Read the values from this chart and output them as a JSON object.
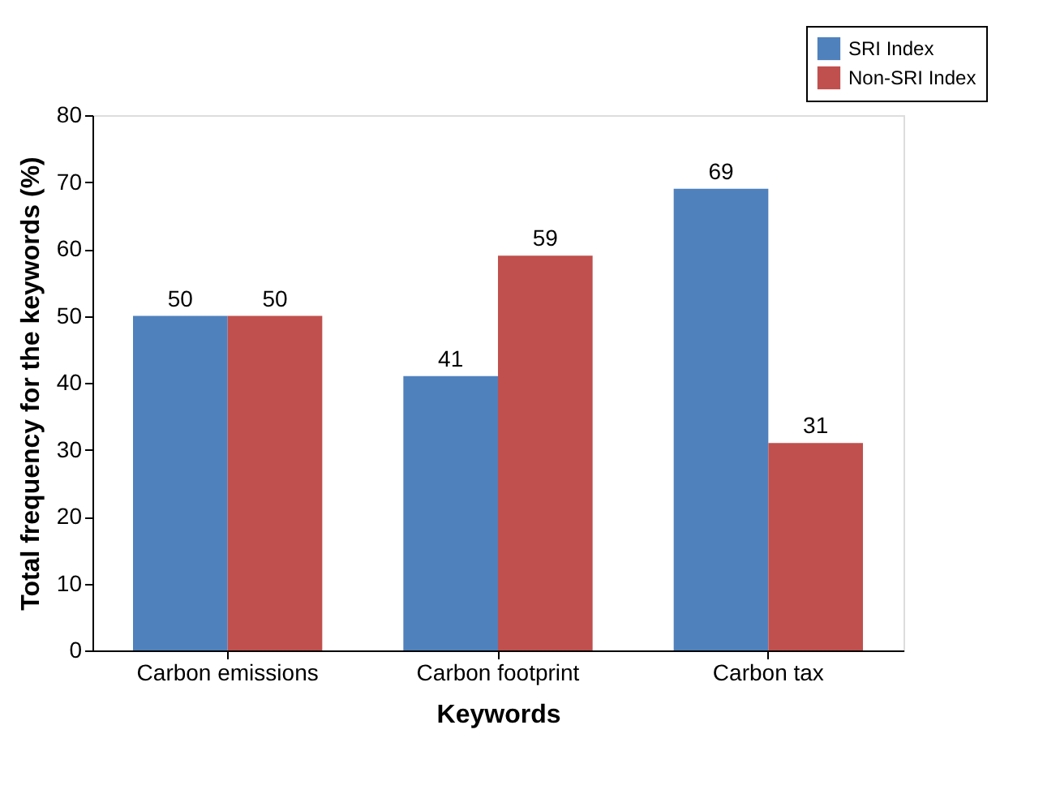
{
  "chart_data": {
    "type": "bar",
    "xlabel": "Keywords",
    "ylabel": "Total frequency for the keywords (%)",
    "categories": [
      "Carbon emissions",
      "Carbon footprint",
      "Carbon tax"
    ],
    "series": [
      {
        "name": "SRI Index",
        "color": "#4f81bd",
        "values": [
          50,
          41,
          69
        ]
      },
      {
        "name": "Non-SRI Index",
        "color": "#c0504d",
        "values": [
          50,
          59,
          31
        ]
      }
    ],
    "ylim": [
      0,
      80
    ],
    "yticks": [
      0,
      10,
      20,
      30,
      40,
      50,
      60,
      70,
      80
    ],
    "grid": false,
    "data_labels": true,
    "legend": "top right"
  }
}
